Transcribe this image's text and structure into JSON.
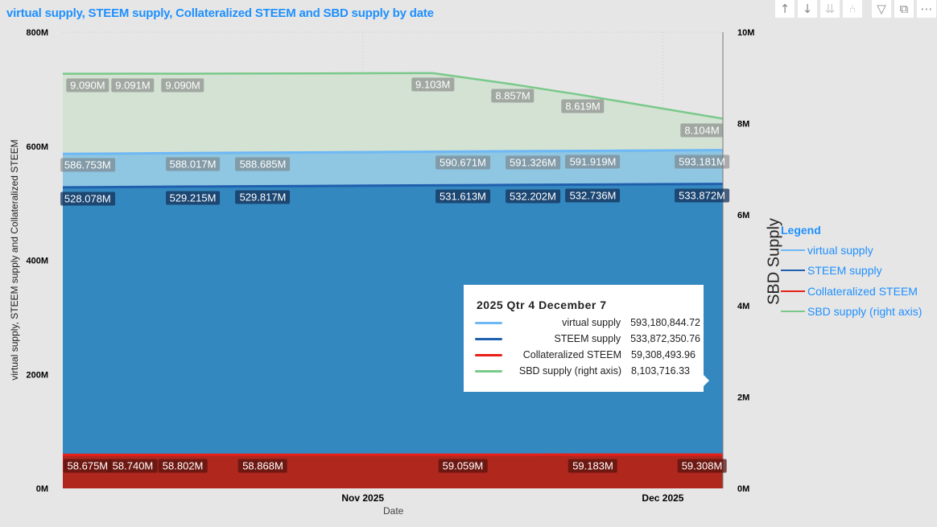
{
  "title": "virtual supply, STEEM supply, Collateralized STEEM and SBD supply by date",
  "toolbar": [
    "sort-up",
    "sort-down",
    "expand-all",
    "drill-down",
    "filter",
    "focus-mode",
    "more-options"
  ],
  "chart_data": {
    "type": "area",
    "title": "virtual supply, STEEM supply, Collateralized STEEM and SBD supply by date",
    "xlabel": "Date",
    "ylabel": "virtual supply, STEEM supply and Collateralized STEEM",
    "y2label": "SBD Supply",
    "x_start": "2025-10-02",
    "x_end": "2025-12-07",
    "x_unit": "days since 2025-10-02",
    "x_ticks": [
      {
        "day": 30,
        "label": "Nov 2025"
      },
      {
        "day": 60,
        "label": "Dec 2025"
      }
    ],
    "ylim": [
      0,
      800
    ],
    "y_ticks": [
      "0M",
      "200M",
      "400M",
      "600M",
      "800M"
    ],
    "y2lim": [
      0,
      10
    ],
    "y2_ticks": [
      "0M",
      "2M",
      "4M",
      "6M",
      "8M",
      "10M"
    ],
    "grid": true,
    "series": [
      {
        "name": "SBD supply (right axis)",
        "axis": "right",
        "color": "#79c98a",
        "fill": "#d3e2d3",
        "label_bg": "rgba(120,120,120,0.55)",
        "points": [
          [
            0,
            9.09
          ],
          [
            2,
            9.09
          ],
          [
            7,
            9.091
          ],
          [
            12,
            9.09
          ],
          [
            37,
            9.103
          ],
          [
            45,
            8.857
          ],
          [
            52,
            8.619
          ],
          [
            66,
            8.104
          ]
        ],
        "labels": [
          [
            2,
            "9.090M"
          ],
          [
            7,
            "9.091M"
          ],
          [
            12,
            "9.090M"
          ],
          [
            37,
            "9.103M"
          ],
          [
            45,
            "8.857M"
          ],
          [
            52,
            "8.619M"
          ],
          [
            66,
            "8.104M"
          ]
        ]
      },
      {
        "name": "virtual supply",
        "axis": "left",
        "color": "#6db8f5",
        "fill": "#8fc6e2",
        "label_bg": "rgba(120,120,120,0.55)",
        "points": [
          [
            0,
            586.6
          ],
          [
            2,
            586.753
          ],
          [
            13,
            588.017
          ],
          [
            20,
            588.685
          ],
          [
            40,
            590.671
          ],
          [
            47,
            591.326
          ],
          [
            53,
            591.919
          ],
          [
            66,
            593.181
          ]
        ],
        "labels": [
          [
            2,
            "586.753M"
          ],
          [
            13,
            "588.017M"
          ],
          [
            20,
            "588.685M"
          ],
          [
            40,
            "590.671M"
          ],
          [
            47,
            "591.326M"
          ],
          [
            53,
            "591.919M"
          ],
          [
            66,
            "593.181M"
          ]
        ]
      },
      {
        "name": "STEEM supply",
        "axis": "left",
        "color": "#1f5fae",
        "fill": "#3488c0",
        "label_bg": "rgba(20,50,90,0.75)",
        "points": [
          [
            0,
            527.9
          ],
          [
            2,
            528.078
          ],
          [
            13,
            529.215
          ],
          [
            20,
            529.817
          ],
          [
            40,
            531.613
          ],
          [
            47,
            532.202
          ],
          [
            53,
            532.736
          ],
          [
            66,
            533.872
          ]
        ],
        "labels": [
          [
            2,
            "528.078M"
          ],
          [
            13,
            "529.215M"
          ],
          [
            20,
            "529.817M"
          ],
          [
            40,
            "531.613M"
          ],
          [
            47,
            "532.202M"
          ],
          [
            53,
            "532.736M"
          ],
          [
            66,
            "533.872M"
          ]
        ]
      },
      {
        "name": "Collateralized STEEM",
        "axis": "left",
        "color": "#e8201a",
        "fill": "#b0271e",
        "label_bg": "rgba(90,20,15,0.75)",
        "points": [
          [
            0,
            58.65
          ],
          [
            2,
            58.675
          ],
          [
            7,
            58.74
          ],
          [
            12,
            58.802
          ],
          [
            20,
            58.868
          ],
          [
            40,
            59.059
          ],
          [
            53,
            59.183
          ],
          [
            66,
            59.308
          ]
        ],
        "labels": [
          [
            2,
            "58.675M"
          ],
          [
            7,
            "58.740M"
          ],
          [
            12,
            "58.802M"
          ],
          [
            20,
            "58.868M"
          ],
          [
            40,
            "59.059M"
          ],
          [
            53,
            "59.183M"
          ],
          [
            66,
            "59.308M"
          ]
        ]
      }
    ],
    "legend": {
      "title": "Legend",
      "position": "right",
      "items": [
        "virtual supply",
        "STEEM supply",
        "Collateralized STEEM",
        "SBD supply (right axis)"
      ]
    },
    "tooltip": {
      "header": "2025 Qtr 4 December 7",
      "rows": [
        {
          "name": "virtual supply",
          "value": "593,180,844.72",
          "color": "#6db8f5"
        },
        {
          "name": "STEEM supply",
          "value": "533,872,350.76",
          "color": "#1f5fae"
        },
        {
          "name": "Collateralized STEEM",
          "value": "59,308,493.96",
          "color": "#e8201a"
        },
        {
          "name": "SBD supply (right axis)",
          "value": "8,103,716.33",
          "color": "#79c98a"
        }
      ]
    }
  }
}
